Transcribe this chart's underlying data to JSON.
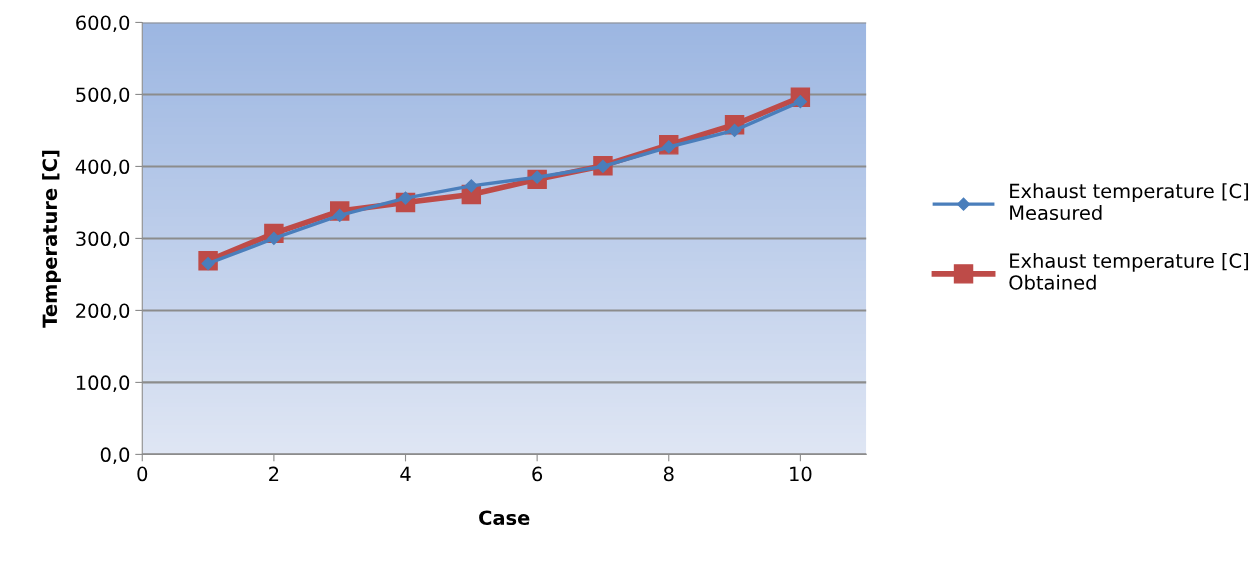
{
  "chart_data": {
    "type": "line",
    "xlabel": "Case",
    "ylabel": "Temperature [C]",
    "x": [
      1,
      2,
      3,
      4,
      5,
      6,
      7,
      8,
      9,
      10
    ],
    "series": [
      {
        "name": "Exhaust temperature [C]\nMeasured",
        "color": "#4a7ebb",
        "marker": "diamond",
        "values": [
          265,
          300,
          332,
          356,
          373,
          385,
          400,
          427,
          450,
          490
        ]
      },
      {
        "name": "Exhaust temperature [C]\nObtained",
        "color": "#be4b48",
        "marker": "square",
        "values": [
          269,
          307,
          338,
          350,
          361,
          382,
          401,
          430,
          458,
          496
        ]
      }
    ],
    "xlim": [
      0,
      11
    ],
    "xticks": [
      0,
      2,
      4,
      6,
      8,
      10
    ],
    "ylim": [
      0,
      600
    ],
    "yticks": [
      {
        "value": 0,
        "label": "0,0"
      },
      {
        "value": 100,
        "label": "100,0"
      },
      {
        "value": 200,
        "label": "200,0"
      },
      {
        "value": 300,
        "label": "300,0"
      },
      {
        "value": 400,
        "label": "400,0"
      },
      {
        "value": 500,
        "label": "500,0"
      },
      {
        "value": 600,
        "label": "600,0"
      }
    ],
    "grid": "y",
    "legend": "right",
    "line_style": "solid"
  }
}
